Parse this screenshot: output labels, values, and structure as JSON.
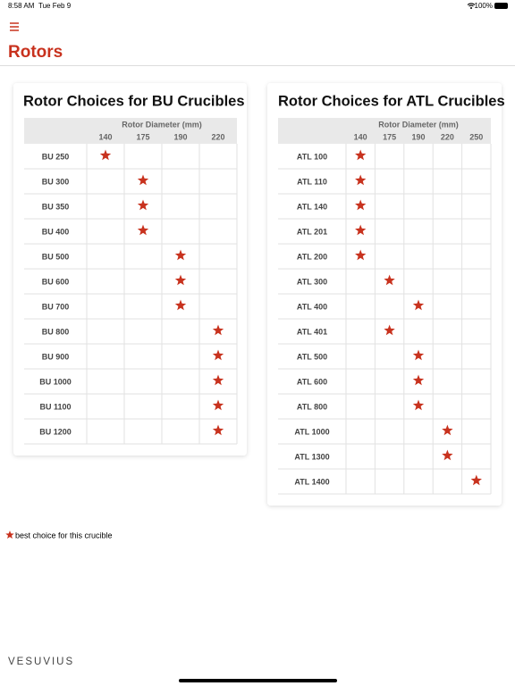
{
  "status_bar": {
    "time": "8:58 AM",
    "date": "Tue Feb 9",
    "battery": "100%"
  },
  "header": {
    "title": "Rotors"
  },
  "tables": [
    {
      "title": "Rotor Choices for BU Crucibles",
      "axis_label": "Rotor Diameter (mm)",
      "diameters": [
        140,
        175,
        190,
        220
      ],
      "rows": [
        {
          "crucible": "BU 250",
          "rotor": 140
        },
        {
          "crucible": "BU 300",
          "rotor": 175
        },
        {
          "crucible": "BU 350",
          "rotor": 175
        },
        {
          "crucible": "BU 400",
          "rotor": 175
        },
        {
          "crucible": "BU 500",
          "rotor": 190
        },
        {
          "crucible": "BU 600",
          "rotor": 190
        },
        {
          "crucible": "BU 700",
          "rotor": 190
        },
        {
          "crucible": "BU 800",
          "rotor": 220
        },
        {
          "crucible": "BU 900",
          "rotor": 220
        },
        {
          "crucible": "BU 1000",
          "rotor": 220
        },
        {
          "crucible": "BU 1100",
          "rotor": 220
        },
        {
          "crucible": "BU 1200",
          "rotor": 220
        }
      ]
    },
    {
      "title": "Rotor Choices for ATL Crucibles",
      "axis_label": "Rotor Diameter (mm)",
      "diameters": [
        140,
        175,
        190,
        220,
        250
      ],
      "rows": [
        {
          "crucible": "ATL 100",
          "rotor": 140
        },
        {
          "crucible": "ATL 110",
          "rotor": 140
        },
        {
          "crucible": "ATL 140",
          "rotor": 140
        },
        {
          "crucible": "ATL 201",
          "rotor": 140
        },
        {
          "crucible": "ATL 200",
          "rotor": 140
        },
        {
          "crucible": "ATL 300",
          "rotor": 175
        },
        {
          "crucible": "ATL 400",
          "rotor": 190
        },
        {
          "crucible": "ATL 401",
          "rotor": 175
        },
        {
          "crucible": "ATL 500",
          "rotor": 190
        },
        {
          "crucible": "ATL 600",
          "rotor": 190
        },
        {
          "crucible": "ATL 800",
          "rotor": 190
        },
        {
          "crucible": "ATL 1000",
          "rotor": 220
        },
        {
          "crucible": "ATL 1300",
          "rotor": 220
        },
        {
          "crucible": "ATL 1400",
          "rotor": 250
        }
      ]
    }
  ],
  "legend": {
    "text": "best choice for this crucible"
  },
  "brand": "VESUVIUS"
}
